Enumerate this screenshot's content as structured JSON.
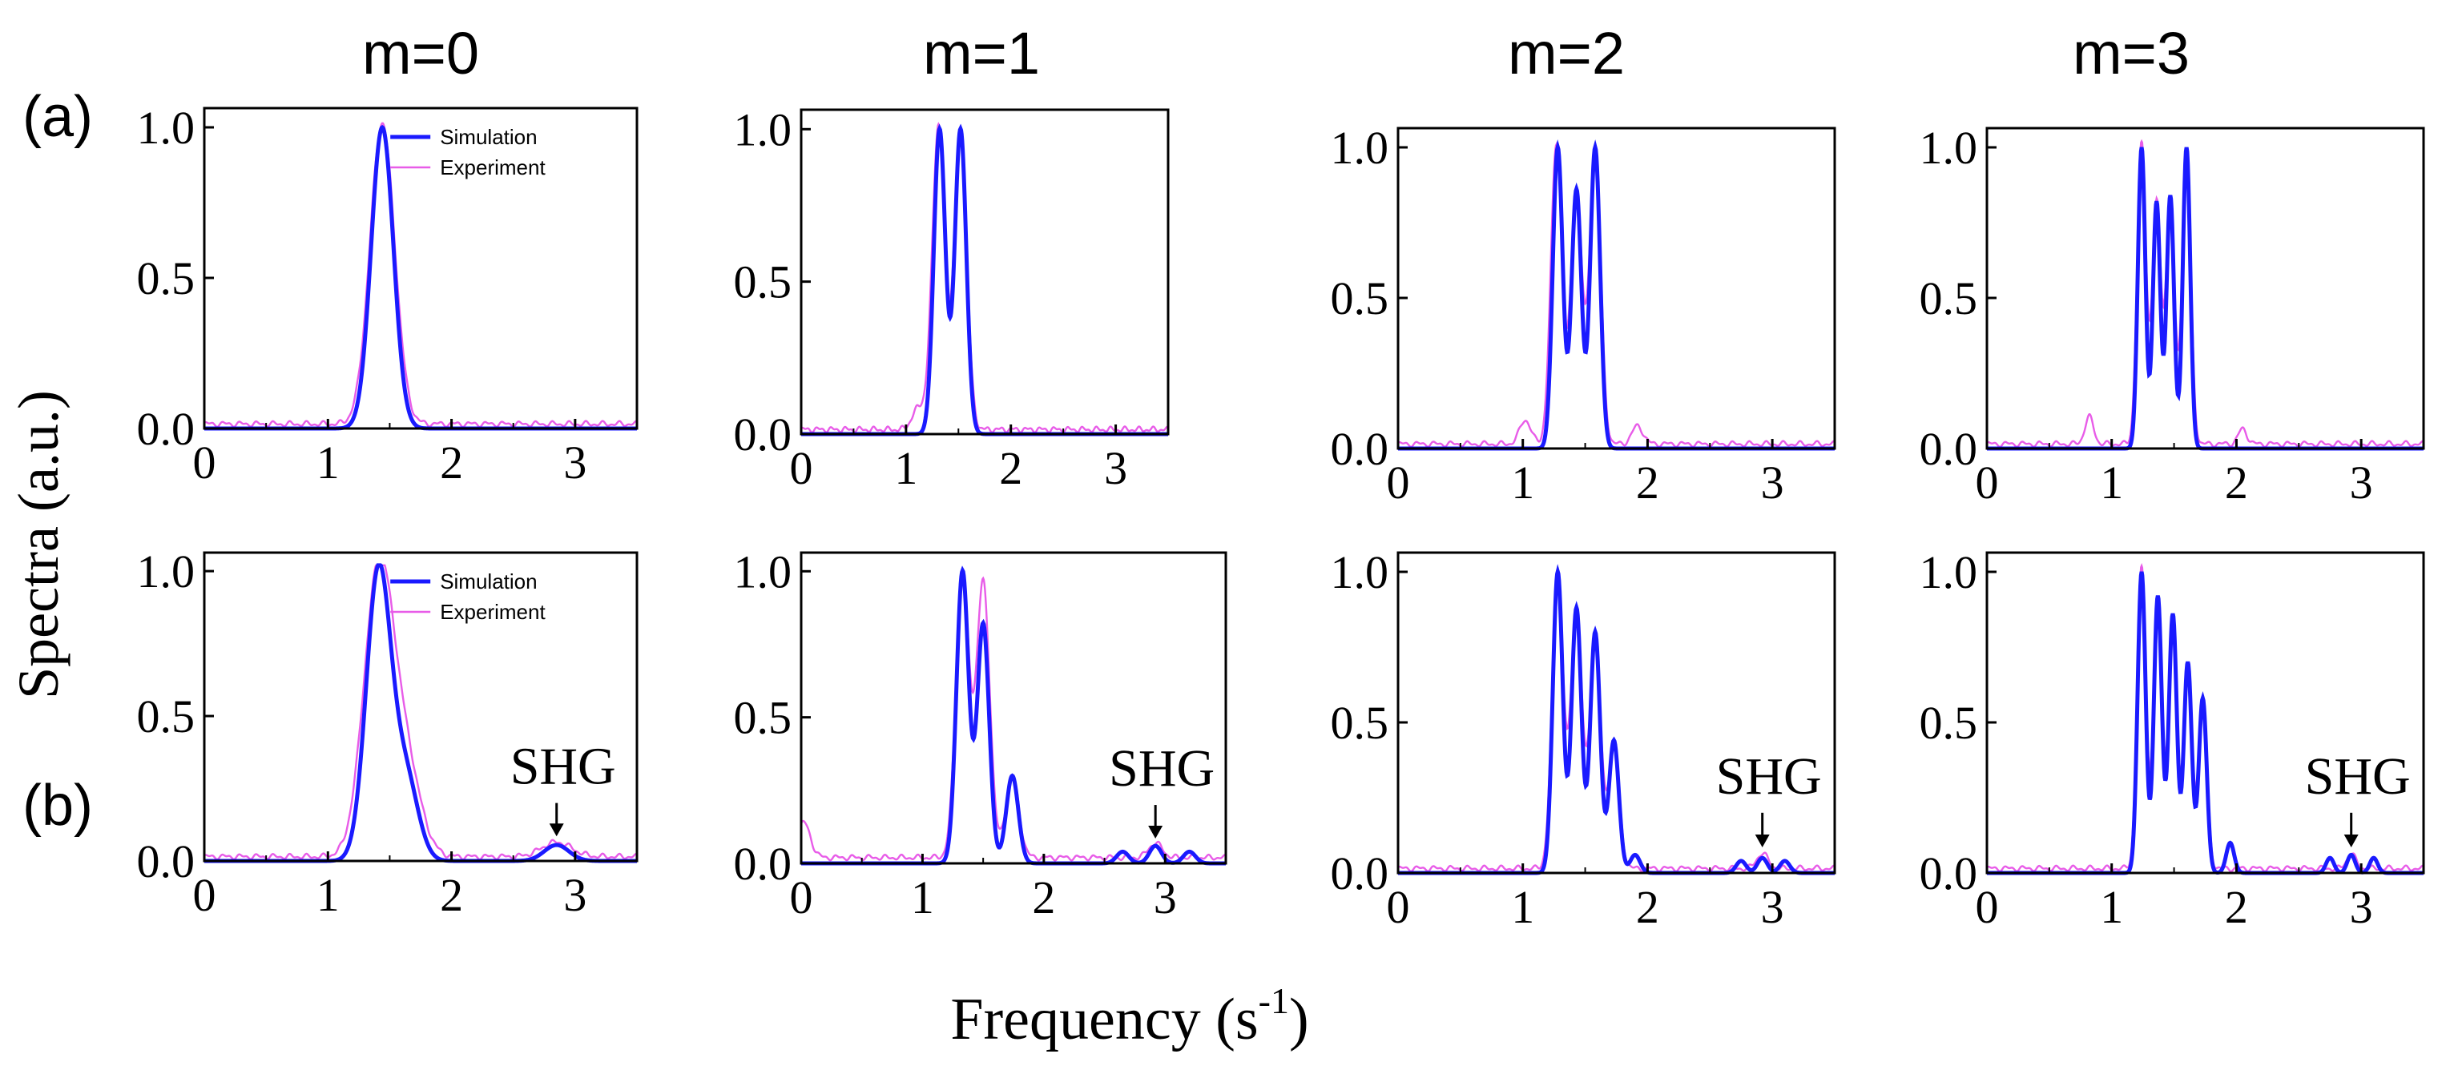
{
  "figure": {
    "ylabel": "Spectra (a.u.)",
    "xlabel_base": "Frequency (s",
    "xlabel_sup": "-1",
    "xlabel_close": ")",
    "row_labels": [
      "(a)",
      "(b)"
    ],
    "column_titles": [
      "m=0",
      "m=1",
      "m=2",
      "m=3"
    ],
    "legend": {
      "simulation": "Simulation",
      "experiment": "Experiment"
    },
    "annotation": "SHG",
    "colors": {
      "simulation": "#1a1aff",
      "experiment": "#e85ce8",
      "axes": "#000000",
      "arrow": "#000000"
    }
  },
  "chart_data": [
    {
      "id": "a0",
      "type": "line",
      "title": "m=0",
      "row": "(a)",
      "xlim": [
        0,
        3.5
      ],
      "ylim": [
        0,
        1.0
      ],
      "xticks": [
        "0",
        "1",
        "2",
        "3"
      ],
      "yticks": [
        "0.0",
        "0.5",
        "1.0"
      ],
      "xlabel": "Frequency (s-1)",
      "ylabel": "Spectra (a.u.)",
      "legend": true,
      "series": [
        {
          "name": "Simulation",
          "peaks": [
            [
              1.44,
              1.0
            ]
          ],
          "sigma": 0.09,
          "baseline": 0.0
        },
        {
          "name": "Experiment",
          "peaks": [
            [
              1.44,
              1.0
            ]
          ],
          "sigma": 0.1,
          "baseline": 0.015,
          "noise": 0.01
        }
      ]
    },
    {
      "id": "a1",
      "type": "line",
      "title": "m=1",
      "row": "(a)",
      "xlim": [
        0,
        3.5
      ],
      "ylim": [
        0,
        1.0
      ],
      "xticks": [
        "0",
        "1",
        "2",
        "3"
      ],
      "yticks": [
        "0.0",
        "0.5",
        "1.0"
      ],
      "series": [
        {
          "name": "Simulation",
          "peaks": [
            [
              1.32,
              1.0
            ],
            [
              1.52,
              1.0
            ]
          ],
          "sigma": 0.055,
          "baseline": 0.0
        },
        {
          "name": "Experiment",
          "peaks": [
            [
              1.31,
              1.0
            ],
            [
              1.52,
              0.98
            ],
            [
              1.12,
              0.07
            ]
          ],
          "sigma": 0.06,
          "baseline": 0.015,
          "noise": 0.01
        }
      ]
    },
    {
      "id": "a2",
      "type": "line",
      "title": "m=2",
      "row": "(a)",
      "xlim": [
        0,
        3.5
      ],
      "ylim": [
        0,
        1.0
      ],
      "xticks": [
        "0",
        "1",
        "2",
        "3"
      ],
      "yticks": [
        "0.0",
        "0.5",
        "1.0"
      ],
      "series": [
        {
          "name": "Simulation",
          "peaks": [
            [
              1.28,
              1.0
            ],
            [
              1.43,
              0.86
            ],
            [
              1.58,
              1.0
            ]
          ],
          "sigma": 0.04,
          "baseline": 0.0
        },
        {
          "name": "Experiment",
          "peaks": [
            [
              1.27,
              1.0
            ],
            [
              1.43,
              0.85
            ],
            [
              1.58,
              0.99
            ],
            [
              1.02,
              0.08
            ],
            [
              1.92,
              0.06
            ]
          ],
          "sigma": 0.045,
          "baseline": 0.015,
          "noise": 0.01
        }
      ]
    },
    {
      "id": "a3",
      "type": "line",
      "title": "m=3",
      "row": "(a)",
      "xlim": [
        0,
        3.5
      ],
      "ylim": [
        0,
        1.0
      ],
      "xticks": [
        "0",
        "1",
        "2",
        "3"
      ],
      "yticks": [
        "0.0",
        "0.5",
        "1.0"
      ],
      "series": [
        {
          "name": "Simulation",
          "peaks": [
            [
              1.24,
              1.0
            ],
            [
              1.36,
              0.82
            ],
            [
              1.47,
              0.84
            ],
            [
              1.6,
              1.0
            ]
          ],
          "sigma": 0.03,
          "baseline": 0.0
        },
        {
          "name": "Experiment",
          "peaks": [
            [
              1.24,
              1.0
            ],
            [
              1.36,
              0.8
            ],
            [
              1.47,
              0.8
            ],
            [
              1.6,
              0.98
            ],
            [
              0.82,
              0.09
            ],
            [
              2.05,
              0.05
            ]
          ],
          "sigma": 0.035,
          "baseline": 0.015,
          "noise": 0.01
        }
      ]
    },
    {
      "id": "b0",
      "type": "line",
      "title": "m=0",
      "row": "(b)",
      "xlim": [
        0,
        3.5
      ],
      "ylim": [
        0,
        1.0
      ],
      "xticks": [
        "0",
        "1",
        "2",
        "3"
      ],
      "yticks": [
        "0.0",
        "0.5",
        "1.0"
      ],
      "legend": true,
      "annotation": {
        "text": "SHG",
        "x": 2.85
      },
      "series": [
        {
          "name": "Simulation",
          "peaks": [
            [
              1.41,
              1.0
            ],
            [
              1.63,
              0.28
            ],
            [
              2.85,
              0.055
            ]
          ],
          "sigma": 0.1,
          "baseline": 0.0
        },
        {
          "name": "Experiment",
          "peaks": [
            [
              1.41,
              0.98
            ],
            [
              1.63,
              0.3
            ],
            [
              2.85,
              0.05
            ]
          ],
          "sigma": 0.12,
          "baseline": 0.015,
          "noise": 0.01
        }
      ]
    },
    {
      "id": "b1",
      "type": "line",
      "title": "m=1",
      "row": "(b)",
      "xlim": [
        0,
        3.5
      ],
      "ylim": [
        0,
        1.0
      ],
      "xticks": [
        "0",
        "1",
        "2",
        "3"
      ],
      "yticks": [
        "0.0",
        "0.5",
        "1.0"
      ],
      "annotation": {
        "text": "SHG",
        "x": 2.92
      },
      "series": [
        {
          "name": "Simulation",
          "peaks": [
            [
              1.33,
              1.0
            ],
            [
              1.5,
              0.82
            ],
            [
              1.74,
              0.3
            ],
            [
              2.65,
              0.04
            ],
            [
              2.92,
              0.06
            ],
            [
              3.2,
              0.04
            ]
          ],
          "sigma": 0.05,
          "baseline": 0.0
        },
        {
          "name": "Experiment",
          "peaks": [
            [
              1.33,
              0.95
            ],
            [
              1.5,
              0.94
            ],
            [
              1.74,
              0.28
            ],
            [
              2.92,
              0.05
            ],
            [
              0.02,
              0.12
            ]
          ],
          "sigma": 0.055,
          "baseline": 0.02,
          "noise": 0.01
        }
      ]
    },
    {
      "id": "b2",
      "type": "line",
      "title": "m=2",
      "row": "(b)",
      "xlim": [
        0,
        3.5
      ],
      "ylim": [
        0,
        1.0
      ],
      "xticks": [
        "0",
        "1",
        "2",
        "3"
      ],
      "yticks": [
        "0.0",
        "0.5",
        "1.0"
      ],
      "annotation": {
        "text": "SHG",
        "x": 2.92
      },
      "series": [
        {
          "name": "Simulation",
          "peaks": [
            [
              1.28,
              1.0
            ],
            [
              1.43,
              0.88
            ],
            [
              1.58,
              0.8
            ],
            [
              1.73,
              0.44
            ],
            [
              1.9,
              0.06
            ],
            [
              2.75,
              0.04
            ],
            [
              2.92,
              0.05
            ],
            [
              3.1,
              0.04
            ]
          ],
          "sigma": 0.04,
          "baseline": 0.0
        },
        {
          "name": "Experiment",
          "peaks": [
            [
              1.28,
              0.98
            ],
            [
              1.43,
              0.86
            ],
            [
              1.58,
              0.74
            ],
            [
              1.73,
              0.4
            ],
            [
              2.92,
              0.05
            ]
          ],
          "sigma": 0.045,
          "baseline": 0.015,
          "noise": 0.01
        }
      ]
    },
    {
      "id": "b3",
      "type": "line",
      "title": "m=3",
      "row": "(b)",
      "xlim": [
        0,
        3.5
      ],
      "ylim": [
        0,
        1.0
      ],
      "xticks": [
        "0",
        "1",
        "2",
        "3"
      ],
      "yticks": [
        "0.0",
        "0.5",
        "1.0"
      ],
      "annotation": {
        "text": "SHG",
        "x": 2.92
      },
      "series": [
        {
          "name": "Simulation",
          "peaks": [
            [
              1.24,
              1.0
            ],
            [
              1.37,
              0.92
            ],
            [
              1.49,
              0.86
            ],
            [
              1.61,
              0.7
            ],
            [
              1.73,
              0.58
            ],
            [
              1.95,
              0.1
            ],
            [
              2.75,
              0.05
            ],
            [
              2.92,
              0.06
            ],
            [
              3.1,
              0.05
            ]
          ],
          "sigma": 0.032,
          "baseline": 0.0
        },
        {
          "name": "Experiment",
          "peaks": [
            [
              1.24,
              1.0
            ],
            [
              1.37,
              0.88
            ],
            [
              1.49,
              0.8
            ],
            [
              1.61,
              0.65
            ],
            [
              1.73,
              0.55
            ],
            [
              2.92,
              0.05
            ]
          ],
          "sigma": 0.035,
          "baseline": 0.015,
          "noise": 0.01
        }
      ]
    }
  ]
}
